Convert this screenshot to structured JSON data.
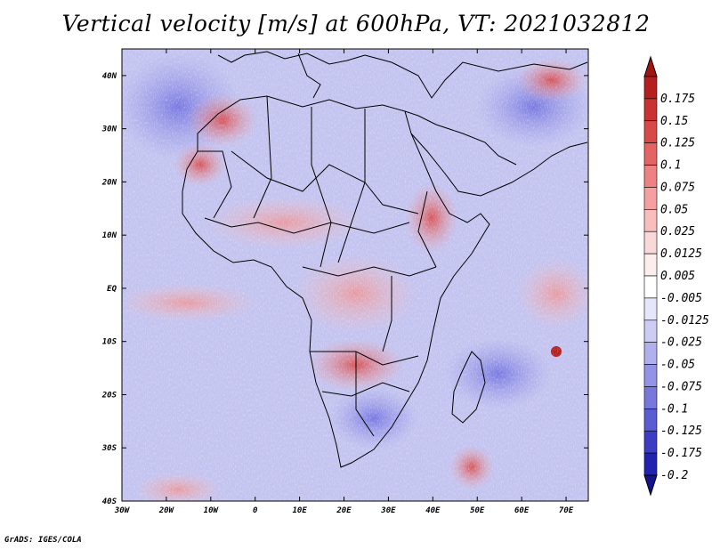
{
  "title": "Vertical velocity [m/s] at 600hPa, VT: 2021032812",
  "credit": "GrADS: IGES/COLA",
  "map": {
    "lon_range": [
      -30,
      75
    ],
    "lat_range": [
      -40,
      45
    ],
    "lon_ticks": [
      {
        "value": -30,
        "label": "30W"
      },
      {
        "value": -20,
        "label": "20W"
      },
      {
        "value": -10,
        "label": "10W"
      },
      {
        "value": 0,
        "label": "0"
      },
      {
        "value": 10,
        "label": "10E"
      },
      {
        "value": 20,
        "label": "20E"
      },
      {
        "value": 30,
        "label": "30E"
      },
      {
        "value": 40,
        "label": "40E"
      },
      {
        "value": 50,
        "label": "50E"
      },
      {
        "value": 60,
        "label": "60E"
      },
      {
        "value": 70,
        "label": "70E"
      }
    ],
    "lat_ticks": [
      {
        "value": 40,
        "label": "40N"
      },
      {
        "value": 30,
        "label": "30N"
      },
      {
        "value": 20,
        "label": "20N"
      },
      {
        "value": 10,
        "label": "10N"
      },
      {
        "value": 0,
        "label": "EQ"
      },
      {
        "value": -10,
        "label": "10S"
      },
      {
        "value": -20,
        "label": "20S"
      },
      {
        "value": -30,
        "label": "30S"
      },
      {
        "value": -40,
        "label": "40S"
      }
    ]
  },
  "colorbar": {
    "levels": [
      {
        "label": "0.175",
        "color": "#b41e1e"
      },
      {
        "label": "0.15",
        "color": "#c83232"
      },
      {
        "label": "0.125",
        "color": "#d84a4a"
      },
      {
        "label": "0.1",
        "color": "#e46464"
      },
      {
        "label": "0.075",
        "color": "#ee8282"
      },
      {
        "label": "0.05",
        "color": "#f4a0a0"
      },
      {
        "label": "0.025",
        "color": "#f8bebe"
      },
      {
        "label": "0.0125",
        "color": "#fbd8d8"
      },
      {
        "label": "0.005",
        "color": "#fdeeee"
      },
      {
        "label": "-0.005",
        "color": "#ffffff"
      },
      {
        "label": "-0.0125",
        "color": "#e6e6fa"
      },
      {
        "label": "-0.025",
        "color": "#ccccf5"
      },
      {
        "label": "-0.05",
        "color": "#b0b0ee"
      },
      {
        "label": "-0.075",
        "color": "#9494e6"
      },
      {
        "label": "-0.1",
        "color": "#7878dc"
      },
      {
        "label": "-0.125",
        "color": "#5c5cd2"
      },
      {
        "label": "-0.175",
        "color": "#3c3cc4"
      },
      {
        "label": "-0.2",
        "color": "#2222b0"
      }
    ],
    "top_cap_color": "#a01414",
    "bottom_cap_color": "#14148c"
  }
}
